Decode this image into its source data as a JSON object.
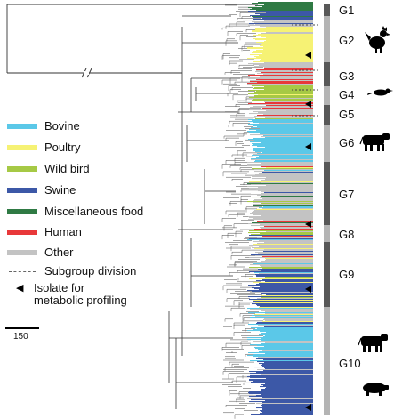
{
  "legend": {
    "categories": [
      {
        "label": "Bovine",
        "color": "#5bc8e8"
      },
      {
        "label": "Poultry",
        "color": "#f6f274"
      },
      {
        "label": "Wild bird",
        "color": "#a6c945"
      },
      {
        "label": "Swine",
        "color": "#3c58a7"
      },
      {
        "label": "Miscellaneous food",
        "color": "#2f7a44"
      },
      {
        "label": "Human",
        "color": "#e8383a"
      },
      {
        "label": "Other",
        "color": "#c3c3c3"
      }
    ],
    "subgroup_division": "Subgroup division",
    "isolate_line1": "Isolate for",
    "isolate_line2": "metabolic profiling"
  },
  "scale_bar": {
    "label": "150"
  },
  "groups": [
    {
      "label": "G1",
      "bar": "dark"
    },
    {
      "label": "G2",
      "bar": "light",
      "animal": "chicken"
    },
    {
      "label": "G3",
      "bar": "dark"
    },
    {
      "label": "G4",
      "bar": "light",
      "animal": "bird"
    },
    {
      "label": "G5",
      "bar": "dark"
    },
    {
      "label": "G6",
      "bar": "light",
      "animal": "cow"
    },
    {
      "label": "G7",
      "bar": "dark"
    },
    {
      "label": "G8",
      "bar": "light"
    },
    {
      "label": "G9",
      "bar": "dark"
    },
    {
      "label": "G10",
      "bar": "light",
      "animal": "cow-pig"
    }
  ]
}
